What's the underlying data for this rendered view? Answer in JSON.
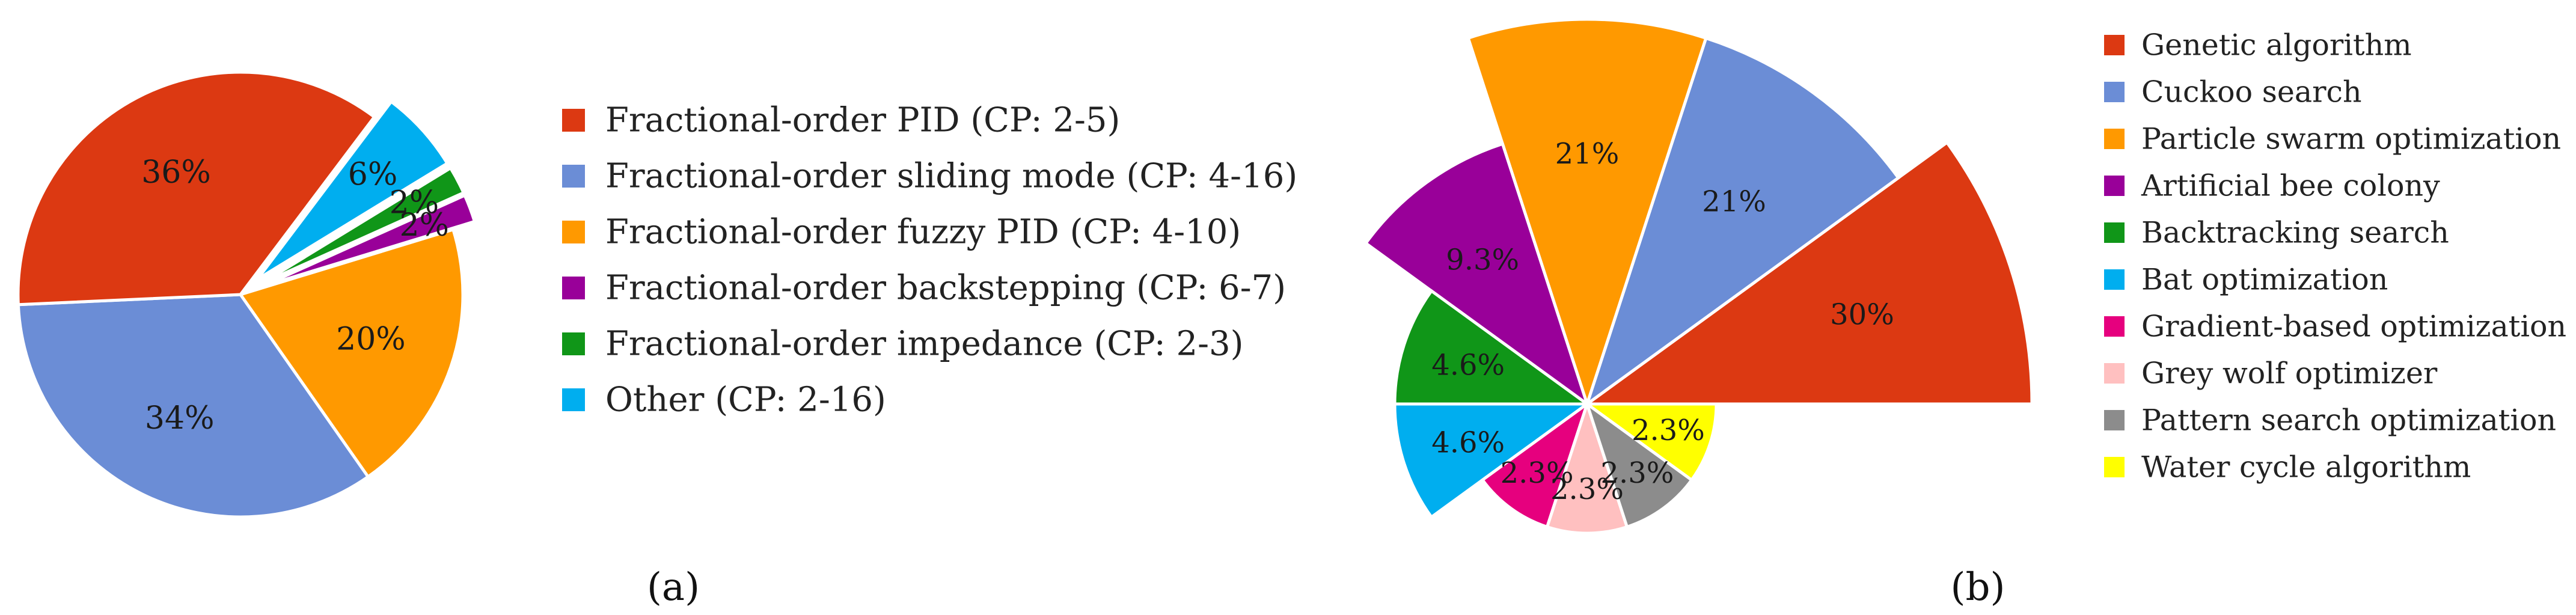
{
  "chart_data": [
    {
      "id": "a",
      "type": "pie",
      "panel_label": "(a)",
      "legend_placement": "right",
      "slices": [
        {
          "label": "Fractional-order PID (CP: 2-5)",
          "value": 36,
          "data_label": "36%",
          "color": "#dc3912"
        },
        {
          "label": "Fractional-order sliding mode (CP: 4-16)",
          "value": 34,
          "data_label": "34%",
          "color": "#6b8dd6"
        },
        {
          "label": "Fractional-order fuzzy PID (CP: 4-10)",
          "value": 20,
          "data_label": "20%",
          "color": "#ff9900"
        },
        {
          "label": "Fractional-order backstepping (CP: 6-7)",
          "value": 2,
          "data_label": "2%",
          "color": "#990099",
          "exploded": true
        },
        {
          "label": "Fractional-order impedance (CP: 2-3)",
          "value": 2,
          "data_label": "2%",
          "color": "#109618",
          "exploded": true
        },
        {
          "label": "Other (CP: 2-16)",
          "value": 6,
          "data_label": "6%",
          "color": "#00aeef",
          "exploded": true
        }
      ]
    },
    {
      "id": "b",
      "type": "pie",
      "variant": "polar-area",
      "panel_label": "(b)",
      "legend_placement": "right",
      "slices": [
        {
          "label": "Genetic algorithm",
          "value": 30,
          "data_label": "30%",
          "color": "#dc3912"
        },
        {
          "label": "Cuckoo search",
          "value": 21,
          "data_label": "21%",
          "color": "#6b8dd6"
        },
        {
          "label": "Particle swarm optimization",
          "value": 21,
          "data_label": "21%",
          "color": "#ff9900"
        },
        {
          "label": "Artificial bee colony",
          "value": 9.3,
          "data_label": "9.3%",
          "color": "#990099"
        },
        {
          "label": "Backtracking search",
          "value": 4.6,
          "data_label": "4.6%",
          "color": "#109618"
        },
        {
          "label": "Bat optimization",
          "value": 4.6,
          "data_label": "4.6%",
          "color": "#00aeef"
        },
        {
          "label": "Gradient-based optimization",
          "value": 2.3,
          "data_label": "2.3%",
          "color": "#e6007e"
        },
        {
          "label": "Grey wolf optimizer",
          "value": 2.3,
          "data_label": "2.3%",
          "color": "#ffc0c0"
        },
        {
          "label": "Pattern search optimization",
          "value": 2.3,
          "data_label": "2.3%",
          "color": "#8c8c8c"
        },
        {
          "label": "Water cycle algorithm",
          "value": 2.3,
          "data_label": "2.3%",
          "color": "#ffff00"
        }
      ]
    }
  ]
}
